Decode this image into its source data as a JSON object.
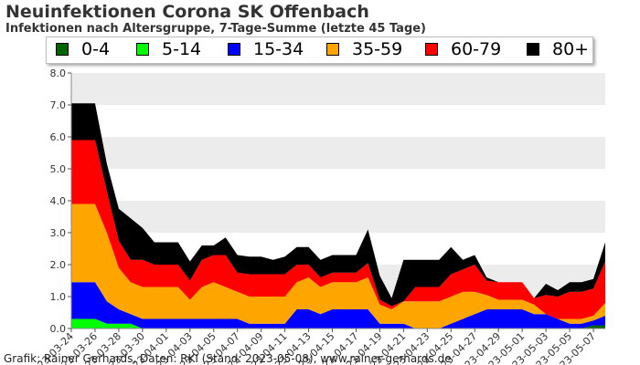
{
  "title": "Neuinfektionen Corona SK Offenbach",
  "subtitle": "Infektionen nach Altersgruppe, 7-Tage-Summe (letzte 45 Tage)",
  "footer": "Grafik: Rainer Gerhards, Daten: RKI (Stand: 2023-05-08), www.rainer-gerhards.de",
  "chart_data": {
    "type": "area",
    "stacked": true,
    "legend_position": "top",
    "grid": true,
    "ylim": [
      0,
      8
    ],
    "yticks": [
      "0.0",
      "1.0",
      "2.0",
      "3.0",
      "4.0",
      "5.0",
      "6.0",
      "7.0",
      "8.0"
    ],
    "xtick_labels": [
      "2023-03-24",
      "2023-03-26",
      "2023-03-28",
      "2023-03-30",
      "2023-04-01",
      "2023-04-03",
      "2023-04-05",
      "2023-04-07",
      "2023-04-09",
      "2023-04-11",
      "2023-04-13",
      "2023-04-15",
      "2023-04-17",
      "2023-04-19",
      "2023-04-21",
      "2023-04-23",
      "2023-04-25",
      "2023-04-27",
      "2023-04-29",
      "2023-05-01",
      "2023-05-03",
      "2023-05-05",
      "2023-05-07"
    ],
    "x": [
      "2023-03-24",
      "2023-03-25",
      "2023-03-26",
      "2023-03-27",
      "2023-03-28",
      "2023-03-29",
      "2023-03-30",
      "2023-03-31",
      "2023-04-01",
      "2023-04-02",
      "2023-04-03",
      "2023-04-04",
      "2023-04-05",
      "2023-04-06",
      "2023-04-07",
      "2023-04-08",
      "2023-04-09",
      "2023-04-10",
      "2023-04-11",
      "2023-04-12",
      "2023-04-13",
      "2023-04-14",
      "2023-04-15",
      "2023-04-16",
      "2023-04-17",
      "2023-04-18",
      "2023-04-19",
      "2023-04-20",
      "2023-04-21",
      "2023-04-22",
      "2023-04-23",
      "2023-04-24",
      "2023-04-25",
      "2023-04-26",
      "2023-04-27",
      "2023-04-28",
      "2023-04-29",
      "2023-04-30",
      "2023-05-01",
      "2023-05-02",
      "2023-05-03",
      "2023-05-04",
      "2023-05-05",
      "2023-05-06",
      "2023-05-07",
      "2023-05-08"
    ],
    "series": [
      {
        "name": "0-4",
        "color": "#006400",
        "values": [
          0,
          0,
          0,
          0,
          0,
          0,
          0,
          0,
          0,
          0,
          0,
          0,
          0,
          0,
          0,
          0,
          0,
          0,
          0,
          0,
          0,
          0,
          0,
          0,
          0,
          0,
          0,
          0,
          0,
          0,
          0,
          0,
          0,
          0,
          0,
          0,
          0,
          0,
          0,
          0,
          0,
          0,
          0,
          0,
          0.1,
          0.1
        ]
      },
      {
        "name": "5-14",
        "color": "#00ff00",
        "values": [
          0.3,
          0.3,
          0.3,
          0.15,
          0.15,
          0.15,
          0,
          0,
          0,
          0,
          0,
          0,
          0,
          0,
          0,
          0,
          0,
          0,
          0,
          0,
          0,
          0,
          0,
          0,
          0,
          0,
          0,
          0,
          0,
          0,
          0,
          0,
          0,
          0,
          0,
          0,
          0,
          0,
          0,
          0,
          0,
          0,
          0,
          0,
          0,
          0
        ]
      },
      {
        "name": "15-34",
        "color": "#0000ff",
        "values": [
          1.15,
          1.15,
          1.15,
          0.7,
          0.45,
          0.3,
          0.3,
          0.3,
          0.3,
          0.3,
          0.3,
          0.3,
          0.3,
          0.3,
          0.3,
          0.15,
          0.15,
          0.15,
          0.15,
          0.6,
          0.6,
          0.45,
          0.6,
          0.6,
          0.6,
          0.6,
          0.15,
          0.15,
          0.15,
          0,
          0,
          0,
          0.15,
          0.3,
          0.45,
          0.6,
          0.6,
          0.6,
          0.6,
          0.45,
          0.45,
          0.3,
          0.15,
          0.15,
          0.15,
          0.3
        ]
      },
      {
        "name": "35-59",
        "color": "#ffa500",
        "values": [
          2.45,
          2.45,
          2.45,
          2.15,
          1.3,
          1.0,
          1.0,
          1.0,
          1.0,
          1.0,
          0.6,
          1.0,
          1.15,
          1.0,
          0.85,
          0.85,
          0.85,
          0.85,
          0.85,
          0.85,
          1.0,
          0.85,
          0.85,
          0.85,
          0.85,
          1.0,
          0.6,
          0.45,
          0.7,
          0.85,
          0.85,
          0.85,
          0.85,
          0.85,
          0.7,
          0.45,
          0.3,
          0.3,
          0.3,
          0.3,
          0,
          0,
          0.15,
          0.15,
          0.15,
          0.4
        ]
      },
      {
        "name": "60-79",
        "color": "#ff0000",
        "values": [
          2.0,
          2.0,
          2.0,
          1.3,
          0.85,
          0.7,
          0.85,
          0.7,
          0.7,
          0.7,
          0.6,
          0.85,
          0.85,
          1.0,
          0.6,
          0.7,
          0.7,
          0.7,
          0.7,
          0.55,
          0.4,
          0.3,
          0.3,
          0.3,
          0.3,
          0.45,
          0.15,
          0.1,
          0,
          0.45,
          0.45,
          0.45,
          0.7,
          0.7,
          0.85,
          0.45,
          0.55,
          0.55,
          0.55,
          0.2,
          0.6,
          0.7,
          0.85,
          0.85,
          0.85,
          1.3
        ]
      },
      {
        "name": "80+",
        "color": "#000000",
        "values": [
          1.15,
          1.15,
          1.15,
          0.85,
          1.0,
          1.3,
          1.0,
          0.7,
          0.7,
          0.7,
          0.6,
          0.45,
          0.3,
          0.55,
          0.55,
          0.55,
          0.55,
          0.45,
          0.55,
          0.55,
          0.55,
          0.55,
          0.55,
          0.55,
          0.55,
          1.05,
          0.75,
          0.25,
          1.3,
          0.85,
          0.85,
          0.85,
          0.85,
          0.3,
          0.3,
          0.1,
          0,
          0,
          0,
          0,
          0.35,
          0.2,
          0.3,
          0.3,
          0.3,
          0.6
        ]
      }
    ]
  }
}
